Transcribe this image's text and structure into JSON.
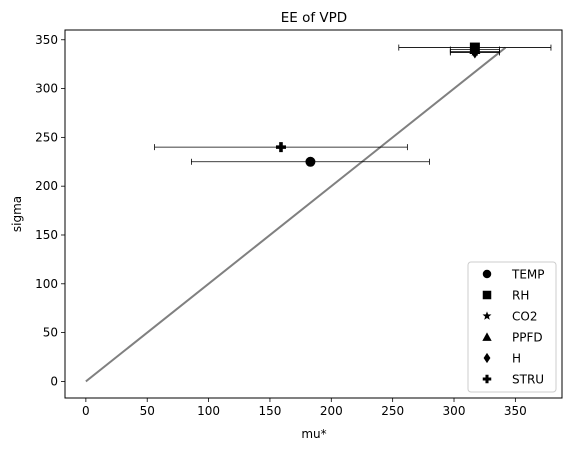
{
  "chart_data": {
    "type": "scatter",
    "title": "EE of VPD",
    "xlabel": "mu*",
    "ylabel": "sigma",
    "xlim": [
      -17,
      388
    ],
    "ylim": [
      -17,
      360
    ],
    "xticks": [
      0,
      50,
      100,
      150,
      200,
      250,
      300,
      350
    ],
    "yticks": [
      0,
      50,
      100,
      150,
      200,
      250,
      300,
      350
    ],
    "grid": false,
    "legend_position": "bottom-right",
    "reference_line": {
      "x": [
        0,
        342
      ],
      "y": [
        0,
        342
      ],
      "color": "#808080"
    },
    "series": [
      {
        "name": "TEMP",
        "marker": "circle",
        "x": 183,
        "y": 225,
        "xerr": 97
      },
      {
        "name": "RH",
        "marker": "square",
        "x": 317,
        "y": 342,
        "xerr": 62
      },
      {
        "name": "CO2",
        "marker": "star",
        "x": 317,
        "y": 338,
        "xerr": 20
      },
      {
        "name": "PPFD",
        "marker": "triangle",
        "x": 317,
        "y": 340,
        "xerr": 20
      },
      {
        "name": "H",
        "marker": "diamond",
        "x": 317,
        "y": 337,
        "xerr": 20
      },
      {
        "name": "STRU",
        "marker": "plus",
        "x": 159,
        "y": 240,
        "xerr": 103
      }
    ]
  }
}
